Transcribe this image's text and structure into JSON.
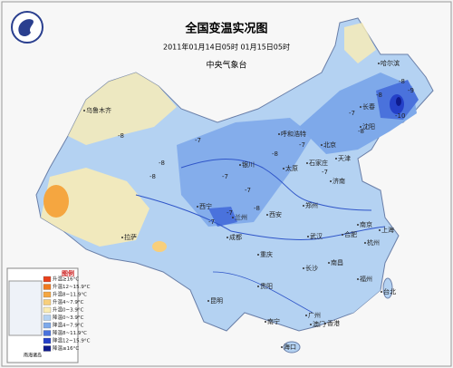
{
  "header": {
    "title": "全国变温实况图",
    "subtitle": "2011年01月14日05时 01月15日05时",
    "agency": "中央气象台"
  },
  "legend": {
    "title": "图例",
    "items": [
      {
        "label": "升温≥16°C",
        "color": "#e8401c"
      },
      {
        "label": "升温12~15.9°C",
        "color": "#f07a1e"
      },
      {
        "label": "升温8~11.9°C",
        "color": "#f5a640"
      },
      {
        "label": "升温4~7.9°C",
        "color": "#f8cf7c"
      },
      {
        "label": "升温0~3.9°C",
        "color": "#fbedb4"
      },
      {
        "label": "降温0~3.9°C",
        "color": "#b4d2f2"
      },
      {
        "label": "降温4~7.9°C",
        "color": "#7ea9ea"
      },
      {
        "label": "降温8~11.9°C",
        "color": "#4a72dc"
      },
      {
        "label": "降温12~15.9°C",
        "color": "#2440c8"
      },
      {
        "label": "降温≥16°C",
        "color": "#0e1a8c"
      }
    ]
  },
  "inset": {
    "label": "南海诸岛"
  },
  "cities": [
    "哈尔滨",
    "长春",
    "沈阳",
    "乌鲁木齐",
    "呼和浩特",
    "北京",
    "天津",
    "石家庄",
    "太原",
    "济南",
    "银川",
    "兰州",
    "西宁",
    "西安",
    "郑州",
    "南京",
    "上海",
    "合肥",
    "武汉",
    "杭州",
    "成都",
    "重庆",
    "长沙",
    "南昌",
    "福州",
    "贵阳",
    "昆明",
    "南宁",
    "广州",
    "香港",
    "澳门",
    "台北",
    "海口",
    "拉萨"
  ],
  "map_labels": [
    "-8",
    "-8",
    "-7",
    "-8",
    "-7",
    "-7",
    "-8",
    "-7",
    "-7",
    "-8",
    "-7",
    "-8",
    "-10",
    "-7",
    "-9",
    "-8",
    "-7",
    "-8"
  ]
}
